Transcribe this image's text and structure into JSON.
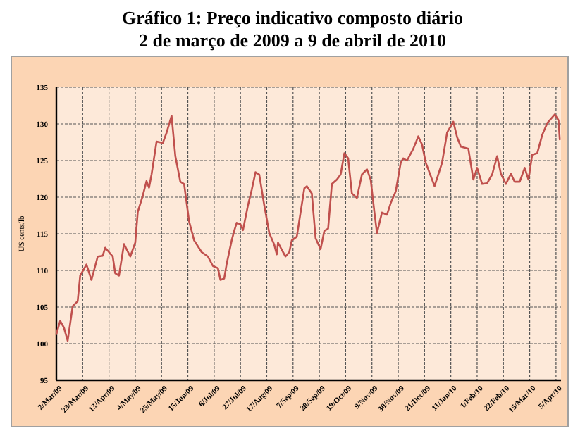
{
  "chart_data": {
    "type": "line",
    "title": "Gráfico 1: Preço indicativo composto diário",
    "subtitle": "2 de março de 2009 a 9 de abril de 2010",
    "ylabel": "US cents/lb",
    "x": [
      "2009-03-02",
      "2009-03-05",
      "2009-03-08",
      "2009-03-11",
      "2009-03-15",
      "2009-03-19",
      "2009-03-21",
      "2009-03-26",
      "2009-03-30",
      "2009-04-04",
      "2009-04-08",
      "2009-04-10",
      "2009-04-16",
      "2009-04-18",
      "2009-04-21",
      "2009-04-25",
      "2009-04-30",
      "2009-05-04",
      "2009-05-06",
      "2009-05-10",
      "2009-05-13",
      "2009-05-15",
      "2009-05-17",
      "2009-05-21",
      "2009-05-26",
      "2009-05-29",
      "2009-06-02",
      "2009-06-05",
      "2009-06-09",
      "2009-06-12",
      "2009-06-16",
      "2009-06-20",
      "2009-06-26",
      "2009-07-01",
      "2009-07-05",
      "2009-07-09",
      "2009-07-11",
      "2009-07-14",
      "2009-07-16",
      "2009-07-20",
      "2009-07-22",
      "2009-07-24",
      "2009-07-27",
      "2009-07-29",
      "2009-08-02",
      "2009-08-05",
      "2009-08-08",
      "2009-08-11",
      "2009-08-15",
      "2009-08-19",
      "2009-08-23",
      "2009-08-25",
      "2009-08-26",
      "2009-08-30",
      "2009-09-01",
      "2009-09-04",
      "2009-09-06",
      "2009-09-10",
      "2009-09-16",
      "2009-09-18",
      "2009-09-22",
      "2009-09-25",
      "2009-09-29",
      "2009-10-02",
      "2009-10-05",
      "2009-10-08",
      "2009-10-12",
      "2009-10-15",
      "2009-10-18",
      "2009-10-21",
      "2009-10-24",
      "2009-10-28",
      "2009-11-01",
      "2009-11-05",
      "2009-11-08",
      "2009-11-11",
      "2009-11-13",
      "2009-11-17",
      "2009-11-21",
      "2009-11-24",
      "2009-11-28",
      "2009-12-02",
      "2009-12-04",
      "2009-12-07",
      "2009-12-12",
      "2009-12-16",
      "2009-12-19",
      "2009-12-22",
      "2009-12-29",
      "2010-01-04",
      "2010-01-08",
      "2010-01-13",
      "2010-01-16",
      "2010-01-19",
      "2010-01-25",
      "2010-01-29",
      "2010-02-01",
      "2010-02-05",
      "2010-02-09",
      "2010-02-13",
      "2010-02-17",
      "2010-02-20",
      "2010-02-24",
      "2010-02-28",
      "2010-03-03",
      "2010-03-07",
      "2010-03-11",
      "2010-03-14",
      "2010-03-17",
      "2010-03-21",
      "2010-03-25",
      "2010-03-29",
      "2010-04-04",
      "2010-04-07",
      "2010-04-08"
    ],
    "series": [
      {
        "color": "#c0504d",
        "values": [
          101.3,
          103.1,
          102.2,
          100.4,
          105.1,
          105.8,
          109.3,
          110.8,
          108.7,
          111.9,
          112.0,
          113.1,
          111.9,
          109.6,
          109.3,
          113.6,
          111.9,
          113.8,
          118.0,
          120.2,
          122.2,
          121.3,
          123.1,
          127.6,
          127.4,
          128.8,
          131.1,
          125.6,
          122.1,
          121.8,
          116.7,
          114.1,
          112.5,
          111.9,
          110.6,
          110.3,
          108.7,
          108.9,
          110.9,
          114.1,
          115.4,
          116.5,
          116.3,
          115.5,
          118.9,
          121.0,
          123.4,
          123.1,
          118.9,
          115.1,
          113.5,
          112.2,
          113.8,
          112.5,
          111.9,
          112.5,
          114.1,
          114.6,
          121.2,
          121.5,
          120.5,
          114.4,
          112.9,
          115.4,
          115.7,
          121.8,
          122.4,
          123.1,
          126.0,
          125.3,
          120.5,
          119.9,
          123.1,
          123.8,
          122.4,
          117.9,
          115.1,
          117.9,
          117.6,
          119.2,
          120.8,
          124.7,
          125.3,
          125.0,
          126.6,
          128.3,
          127.2,
          124.7,
          121.5,
          124.7,
          128.8,
          130.3,
          128.2,
          126.9,
          126.6,
          122.4,
          124.0,
          121.8,
          121.9,
          123.1,
          125.6,
          123.2,
          121.8,
          123.2,
          122.1,
          122.1,
          124.0,
          122.4,
          125.8,
          126.0,
          128.5,
          130.1,
          131.3,
          130.5,
          127.9
        ]
      }
    ],
    "xlim": [
      "2009-03-02",
      "2010-04-09"
    ],
    "xticks": [
      {
        "value": "2009-03-02",
        "label": "2/Mar/09"
      },
      {
        "value": "2009-03-23",
        "label": "23/Mar/09"
      },
      {
        "value": "2009-04-13",
        "label": "13/Apr/09"
      },
      {
        "value": "2009-05-04",
        "label": "4/May/09"
      },
      {
        "value": "2009-05-25",
        "label": "25/May/09"
      },
      {
        "value": "2009-06-15",
        "label": "15/Jun/09"
      },
      {
        "value": "2009-07-06",
        "label": "6/Jul/09"
      },
      {
        "value": "2009-07-27",
        "label": "27/Jul/09"
      },
      {
        "value": "2009-08-17",
        "label": "17/Aug/09"
      },
      {
        "value": "2009-09-07",
        "label": "7/Sep/09"
      },
      {
        "value": "2009-09-28",
        "label": "28/Sep/09"
      },
      {
        "value": "2009-10-19",
        "label": "19/Oct/09"
      },
      {
        "value": "2009-11-09",
        "label": "9/Nov/09"
      },
      {
        "value": "2009-11-30",
        "label": "30/Nov/09"
      },
      {
        "value": "2009-12-21",
        "label": "21/Dec/09"
      },
      {
        "value": "2010-01-11",
        "label": "11/Jan/10"
      },
      {
        "value": "2010-02-01",
        "label": "1/Feb/10"
      },
      {
        "value": "2010-02-22",
        "label": "22/Feb/10"
      },
      {
        "value": "2010-03-15",
        "label": "15/Mar/10"
      },
      {
        "value": "2010-04-05",
        "label": "5/Apr/10"
      }
    ],
    "ylim": [
      95,
      135
    ],
    "yticks": [
      95,
      100,
      105,
      110,
      115,
      120,
      125,
      130,
      135
    ],
    "grid": true,
    "marker": "none",
    "line_style": "solid"
  }
}
